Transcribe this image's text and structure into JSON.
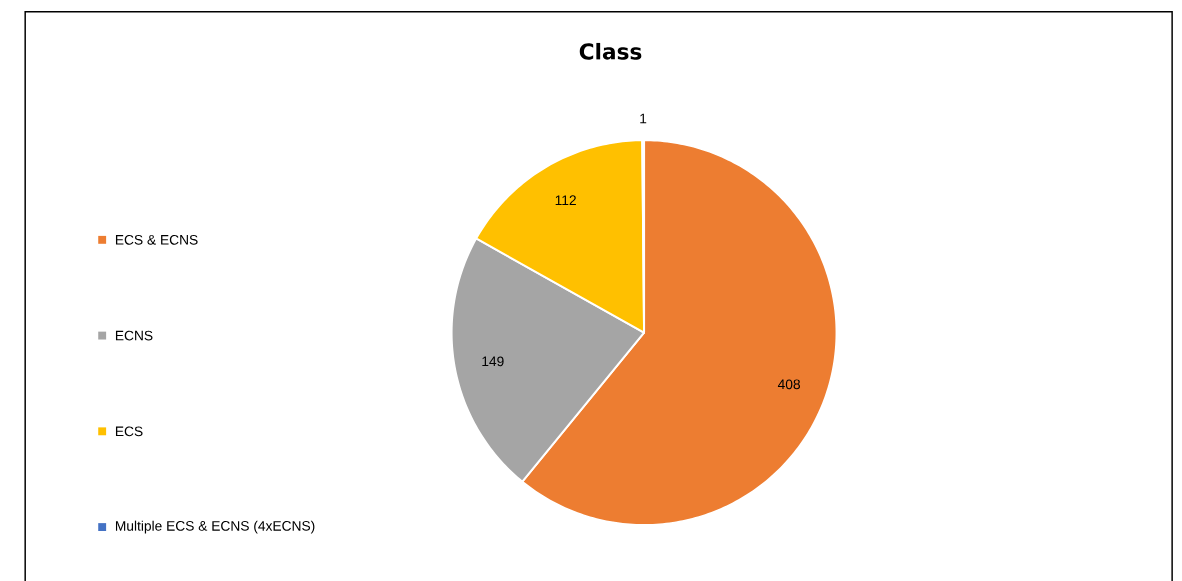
{
  "chart_data": {
    "type": "pie",
    "title": "Class",
    "categories": [
      "ECS & ECNS",
      "ECNS",
      "ECS",
      "Multiple ECS & ECNS (4xECNS)"
    ],
    "values": [
      408,
      149,
      112,
      1
    ],
    "colors": [
      "#ed7d31",
      "#a5a5a5",
      "#ffc000",
      "#4472c4"
    ],
    "data_labels": true,
    "legend": "left"
  }
}
